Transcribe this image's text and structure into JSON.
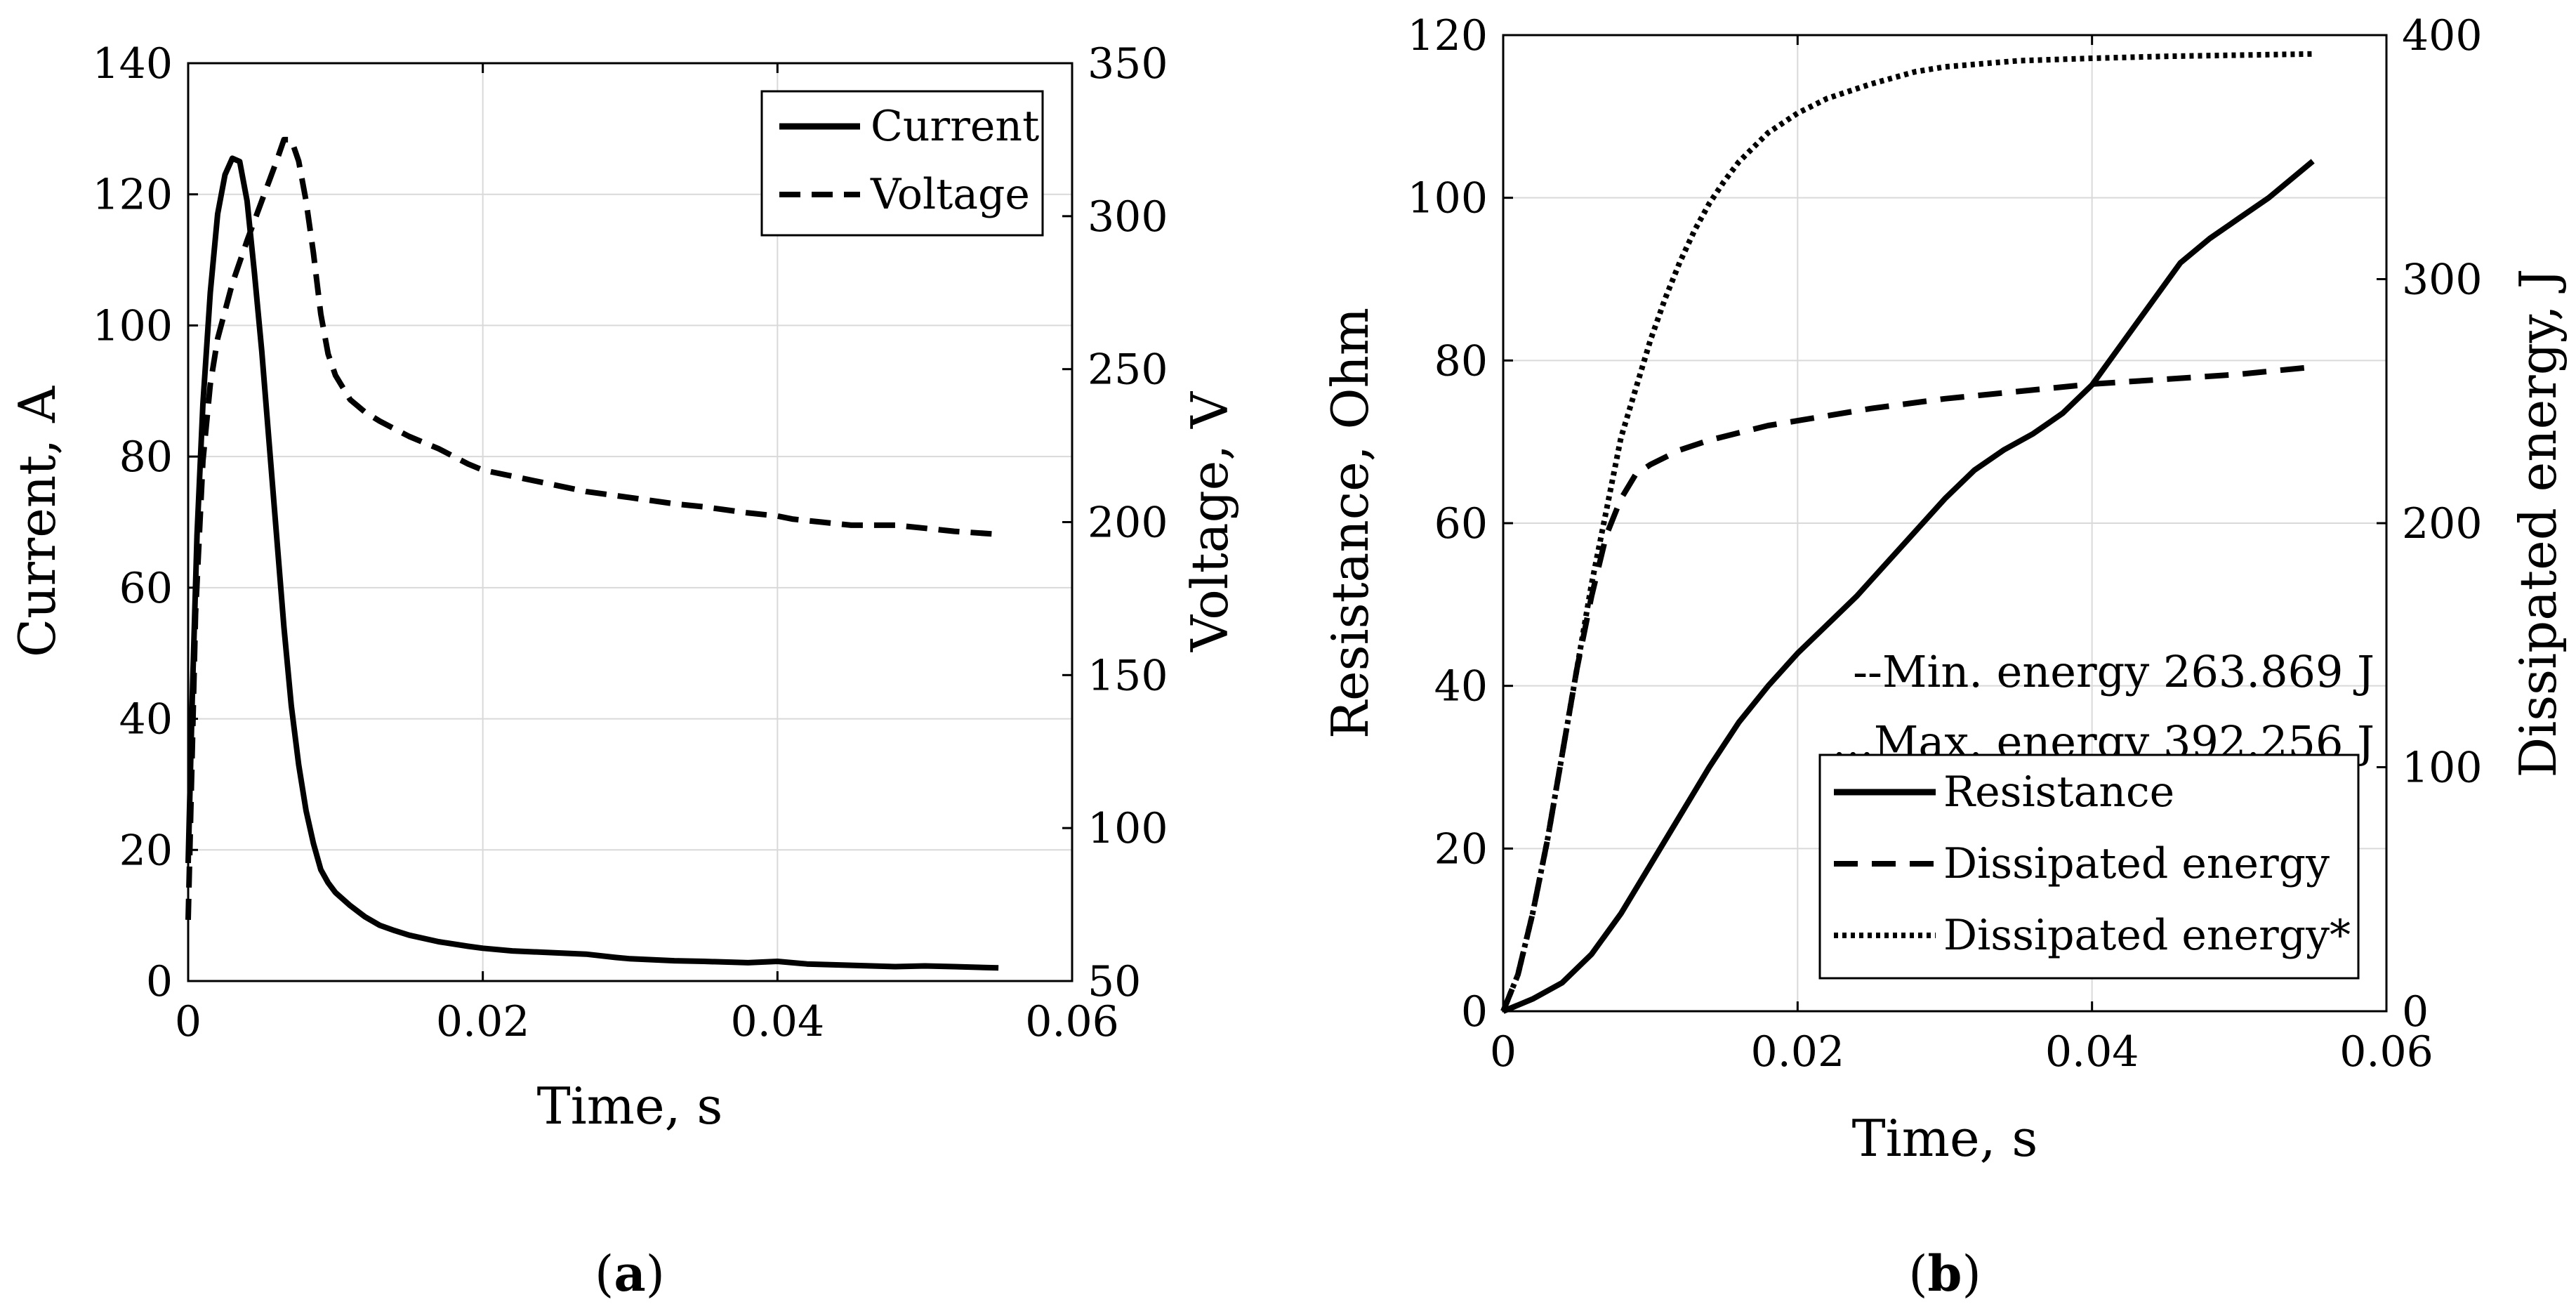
{
  "chart_data": [
    {
      "panel_label": "a",
      "type": "line",
      "title": "",
      "xlabel": "Time, s",
      "ylabel": "Current, A",
      "y2label": "Voltage, V",
      "xlim": [
        0,
        0.06
      ],
      "ylim": [
        0,
        140
      ],
      "y2lim": [
        50,
        350
      ],
      "xticks": [
        0,
        0.02,
        0.04,
        0.06
      ],
      "xtick_labels": [
        "0",
        "0.02",
        "0.04",
        "0.06"
      ],
      "yticks": [
        0,
        20,
        40,
        60,
        80,
        100,
        120,
        140
      ],
      "y2ticks": [
        50,
        100,
        150,
        200,
        250,
        300,
        350
      ],
      "grid": true,
      "legend": {
        "position": "top-right",
        "entries": [
          "Current",
          "Voltage"
        ]
      },
      "series": [
        {
          "name": "Current",
          "axis": "left",
          "style": "solid",
          "x": [
            0,
            0.0003,
            0.0006,
            0.001,
            0.0015,
            0.002,
            0.0025,
            0.003,
            0.0035,
            0.004,
            0.0045,
            0.005,
            0.0055,
            0.006,
            0.0065,
            0.007,
            0.0075,
            0.008,
            0.0085,
            0.009,
            0.0095,
            0.01,
            0.011,
            0.012,
            0.013,
            0.014,
            0.015,
            0.017,
            0.019,
            0.02,
            0.022,
            0.025,
            0.027,
            0.029,
            0.03,
            0.033,
            0.035,
            0.038,
            0.04,
            0.042,
            0.045,
            0.048,
            0.05,
            0.052,
            0.055
          ],
          "y": [
            18,
            45,
            68,
            88,
            105,
            117,
            123,
            125.5,
            125,
            119,
            108,
            96,
            82,
            68,
            54,
            42,
            33,
            26,
            21,
            17,
            15,
            13.5,
            11.5,
            9.8,
            8.5,
            7.7,
            7,
            6,
            5.3,
            5,
            4.6,
            4.3,
            4.1,
            3.6,
            3.4,
            3.1,
            3,
            2.8,
            3,
            2.6,
            2.4,
            2.2,
            2.3,
            2.2,
            2
          ]
        },
        {
          "name": "Voltage",
          "axis": "right",
          "style": "dashed",
          "x": [
            0,
            0.0005,
            0.001,
            0.0015,
            0.002,
            0.003,
            0.004,
            0.005,
            0.006,
            0.0065,
            0.007,
            0.0075,
            0.008,
            0.0085,
            0.009,
            0.0095,
            0.01,
            0.011,
            0.012,
            0.013,
            0.015,
            0.017,
            0.019,
            0.02,
            0.022,
            0.025,
            0.027,
            0.03,
            0.033,
            0.035,
            0.038,
            0.04,
            0.041,
            0.043,
            0.045,
            0.048,
            0.05,
            0.052,
            0.055
          ],
          "y": [
            70,
            170,
            220,
            245,
            260,
            278,
            292,
            305,
            318,
            325,
            325,
            318,
            305,
            288,
            268,
            255,
            248,
            240,
            236,
            233,
            228,
            224,
            219,
            217,
            215,
            212,
            210,
            208,
            206,
            205,
            203,
            202,
            201,
            200,
            199,
            199,
            198,
            197,
            196
          ]
        }
      ]
    },
    {
      "panel_label": "b",
      "type": "line",
      "title": "",
      "xlabel": "Time, s",
      "ylabel": "Resistance, Ohm",
      "y2label": "Dissipated energy, J",
      "xlim": [
        0,
        0.06
      ],
      "ylim": [
        0,
        120
      ],
      "y2lim": [
        0,
        400
      ],
      "xticks": [
        0,
        0.02,
        0.04,
        0.06
      ],
      "xtick_labels": [
        "0",
        "0.02",
        "0.04",
        "0.06"
      ],
      "yticks": [
        0,
        20,
        40,
        60,
        80,
        100,
        120
      ],
      "y2ticks": [
        0,
        100,
        200,
        300,
        400
      ],
      "grid": true,
      "annotations": [
        "--Min. energy 263.869 J",
        "...Max. energy 392.256 J"
      ],
      "legend": {
        "position": "bottom-right",
        "entries": [
          "Resistance",
          "Dissipated energy",
          "Dissipated energy*"
        ]
      },
      "series": [
        {
          "name": "Resistance",
          "axis": "left",
          "style": "solid",
          "x": [
            0,
            0.002,
            0.004,
            0.006,
            0.008,
            0.01,
            0.012,
            0.014,
            0.016,
            0.018,
            0.02,
            0.022,
            0.024,
            0.026,
            0.028,
            0.03,
            0.032,
            0.034,
            0.036,
            0.038,
            0.04,
            0.042,
            0.044,
            0.046,
            0.048,
            0.05,
            0.052,
            0.055
          ],
          "y": [
            0,
            1.5,
            3.5,
            7,
            12,
            18,
            24,
            30,
            35.5,
            40,
            44,
            47.5,
            51,
            55,
            59,
            63,
            66.5,
            69,
            71,
            73.5,
            77,
            82,
            87,
            92,
            95,
            97.5,
            100,
            104.5
          ]
        },
        {
          "name": "Dissipated energy",
          "axis": "right",
          "style": "dashed",
          "x": [
            0,
            0.001,
            0.002,
            0.003,
            0.004,
            0.005,
            0.006,
            0.007,
            0.008,
            0.009,
            0.01,
            0.012,
            0.014,
            0.016,
            0.018,
            0.02,
            0.025,
            0.03,
            0.035,
            0.04,
            0.045,
            0.05,
            0.055
          ],
          "y": [
            0,
            15,
            40,
            70,
            105,
            140,
            170,
            195,
            210,
            220,
            224,
            230,
            234,
            237,
            240,
            242,
            247,
            251,
            254,
            257,
            259,
            261,
            264
          ]
        },
        {
          "name": "Dissipated energy*",
          "axis": "right",
          "style": "dotted",
          "x": [
            0,
            0.001,
            0.002,
            0.003,
            0.004,
            0.005,
            0.006,
            0.007,
            0.008,
            0.009,
            0.01,
            0.011,
            0.012,
            0.013,
            0.014,
            0.015,
            0.016,
            0.017,
            0.018,
            0.019,
            0.02,
            0.022,
            0.025,
            0.028,
            0.03,
            0.035,
            0.04,
            0.045,
            0.05,
            0.055
          ],
          "y": [
            0,
            15,
            40,
            70,
            105,
            140,
            175,
            205,
            235,
            255,
            275,
            292,
            307,
            320,
            331,
            340,
            348,
            354,
            360,
            364,
            368,
            374,
            380,
            385,
            387,
            389.5,
            390.5,
            391.3,
            391.8,
            392.3
          ]
        }
      ]
    }
  ]
}
